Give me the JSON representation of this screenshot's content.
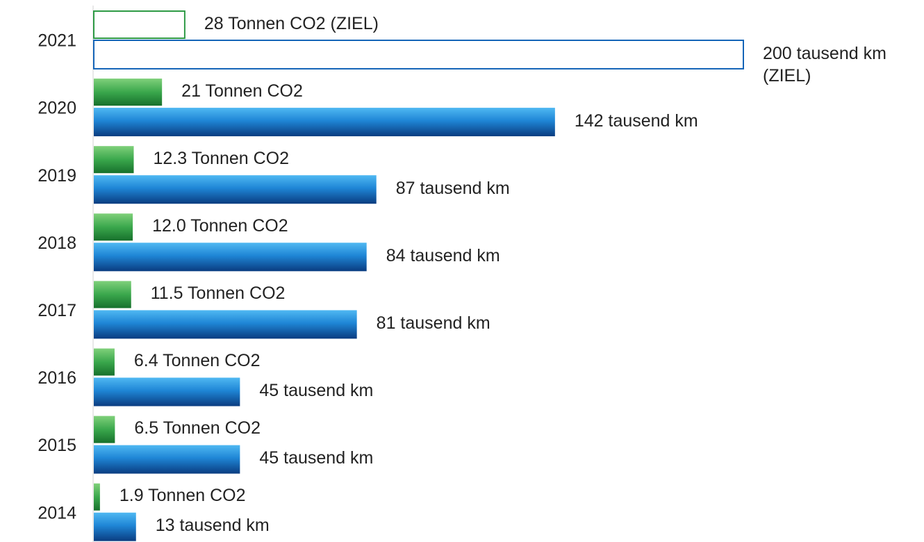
{
  "chart_data": {
    "type": "barh",
    "categories": [
      "2021",
      "2020",
      "2019",
      "2018",
      "2017",
      "2016",
      "2015",
      "2014"
    ],
    "series": [
      {
        "color": "#2e9a45",
        "values": [
          28,
          21,
          12.3,
          12.0,
          11.5,
          6.4,
          6.5,
          1.9
        ],
        "value_labels": [
          "28 Tonnen CO2 (ZIEL)",
          "21 Tonnen CO2",
          "12.3 Tonnen CO2",
          "12.0 Tonnen CO2",
          "11.5 Tonnen CO2",
          "6.4 Tonnen CO2",
          "6.5 Tonnen CO2",
          "1.9 Tonnen CO2"
        ]
      },
      {
        "color": "#1565b8",
        "values": [
          200,
          142,
          87,
          84,
          81,
          45,
          45,
          13
        ],
        "value_labels": [
          "200 tausend km (ZIEL)",
          "142 tausend km",
          "87 tausend km",
          "84 tausend km",
          "81 tausend km",
          "45 tausend km",
          "45 tausend km",
          "13 tausend km"
        ]
      }
    ],
    "outlined_categories": [
      "2021"
    ]
  }
}
